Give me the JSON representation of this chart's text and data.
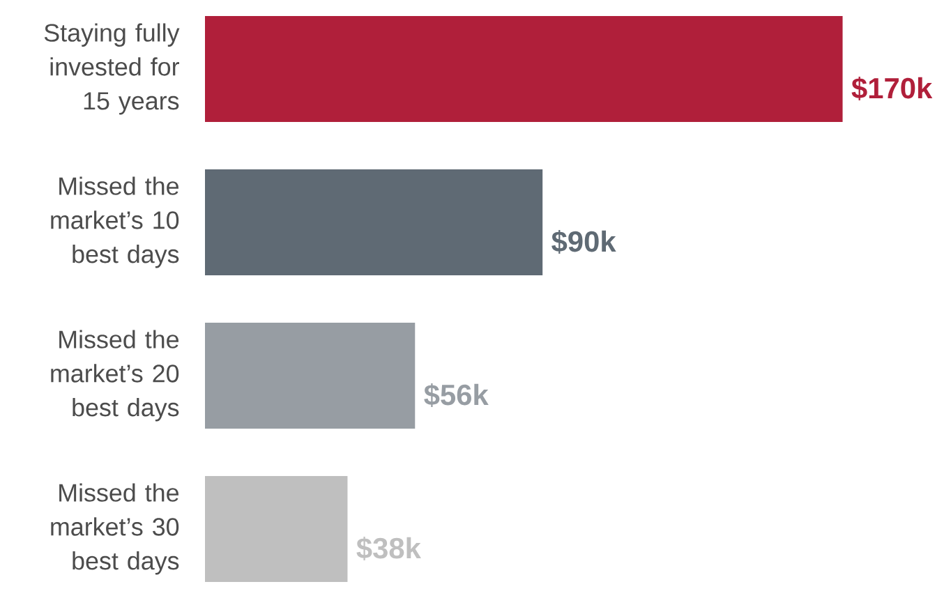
{
  "chart_data": {
    "type": "bar",
    "orientation": "horizontal",
    "categories": [
      "Staying fully invested for 15 years",
      "Missed the market’s 10 best days",
      "Missed the market’s 20 best days",
      "Missed the market’s 30 best days"
    ],
    "values": [
      170,
      90,
      56,
      38
    ],
    "colors": [
      "#b01f3a",
      "#5f6a74",
      "#979da3",
      "#bfbfbf"
    ],
    "value_labels": [
      "$170k",
      "$90k",
      "$56k",
      "$38k"
    ]
  }
}
